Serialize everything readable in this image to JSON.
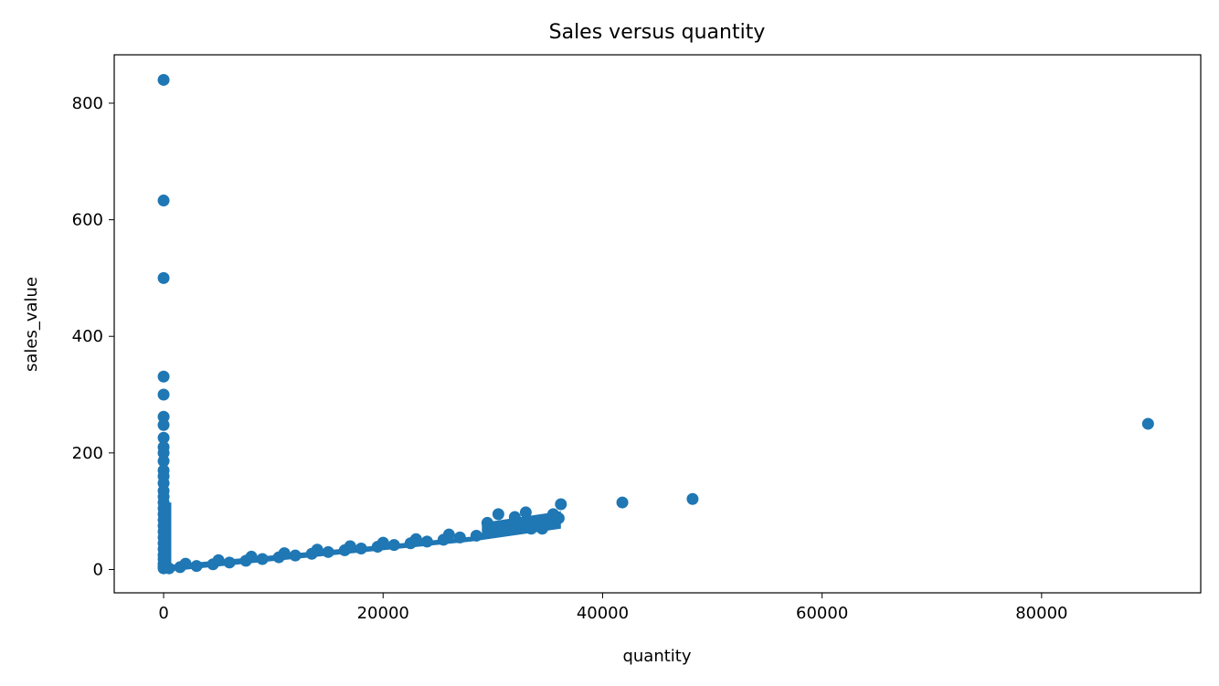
{
  "chart_data": {
    "type": "scatter",
    "title": "Sales versus quantity",
    "xlabel": "quantity",
    "ylabel": "sales_value",
    "xlim": [
      -4500,
      94500
    ],
    "ylim": [
      -40,
      883
    ],
    "xticks": [
      0,
      20000,
      40000,
      60000,
      80000
    ],
    "yticks": [
      0,
      200,
      400,
      600,
      800
    ],
    "grid": false,
    "color": "#1f77b4",
    "series": [
      {
        "x": [
          0,
          0,
          0,
          0,
          0,
          0,
          0,
          0,
          0,
          0,
          0,
          0,
          0,
          0,
          0,
          0,
          0,
          0,
          0,
          0,
          0,
          0,
          0,
          0,
          0,
          0,
          0,
          0,
          0,
          0,
          500,
          1500,
          3000,
          4500,
          6000,
          7500,
          9000,
          10500,
          12000,
          13500,
          15000,
          16500,
          18000,
          19500,
          21000,
          22500,
          24000,
          25500,
          27000,
          28500,
          2000,
          5000,
          8000,
          11000,
          14000,
          17000,
          20000,
          23000,
          26000,
          29500,
          30000,
          30500,
          31000,
          32000,
          32500,
          33000,
          33500,
          34500,
          35200,
          35500,
          36000,
          36200,
          41800,
          48200,
          89700
        ],
        "y": [
          840,
          633,
          500,
          331,
          300,
          262,
          248,
          226,
          210,
          200,
          186,
          170,
          160,
          148,
          135,
          125,
          115,
          105,
          95,
          85,
          75,
          65,
          55,
          45,
          35,
          25,
          18,
          10,
          5,
          2,
          2,
          4,
          6,
          9,
          12,
          15,
          18,
          21,
          24,
          27,
          30,
          33,
          36,
          39,
          42,
          45,
          48,
          51,
          55,
          58,
          10,
          16,
          22,
          28,
          34,
          40,
          46,
          52,
          60,
          80,
          68,
          95,
          72,
          90,
          75,
          98,
          70,
          70,
          78,
          95,
          88,
          112,
          115,
          121,
          250
        ]
      }
    ]
  }
}
